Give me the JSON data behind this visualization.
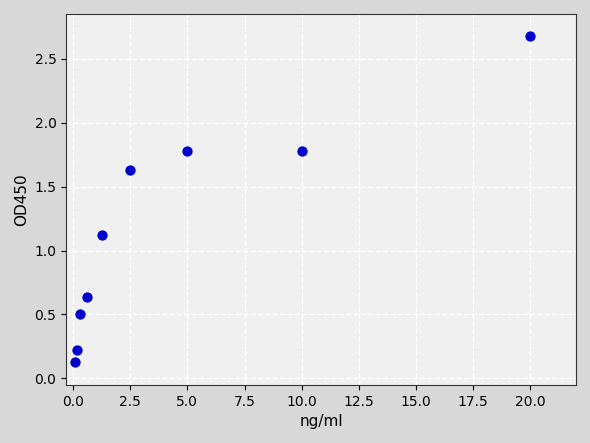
{
  "scatter_x": [
    0.078,
    0.156,
    0.313,
    0.625,
    1.25,
    2.5,
    5.0,
    10.0,
    20.0
  ],
  "scatter_y": [
    0.13,
    0.22,
    0.5,
    0.64,
    1.12,
    1.63,
    1.78,
    1.78,
    2.68
  ],
  "scatter_color": "#0000cc",
  "scatter_size": 55,
  "curve_color": "#cc0000",
  "curve_linewidth": 1.8,
  "xlabel": "ng/ml",
  "ylabel": "OD450",
  "xlim": [
    -0.3,
    22
  ],
  "ylim": [
    -0.05,
    2.85
  ],
  "xticks": [
    0.0,
    2.5,
    5.0,
    7.5,
    10.0,
    12.5,
    15.0,
    17.5,
    20.0
  ],
  "yticks": [
    0.0,
    0.5,
    1.0,
    1.5,
    2.0,
    2.5
  ],
  "background_color": "#d8d8d8",
  "plot_background_color": "#f0f0f0",
  "grid_color": "#ffffff",
  "grid_linestyle": "--",
  "grid_linewidth": 1.0,
  "xlabel_fontsize": 11,
  "ylabel_fontsize": 11,
  "tick_fontsize": 10
}
